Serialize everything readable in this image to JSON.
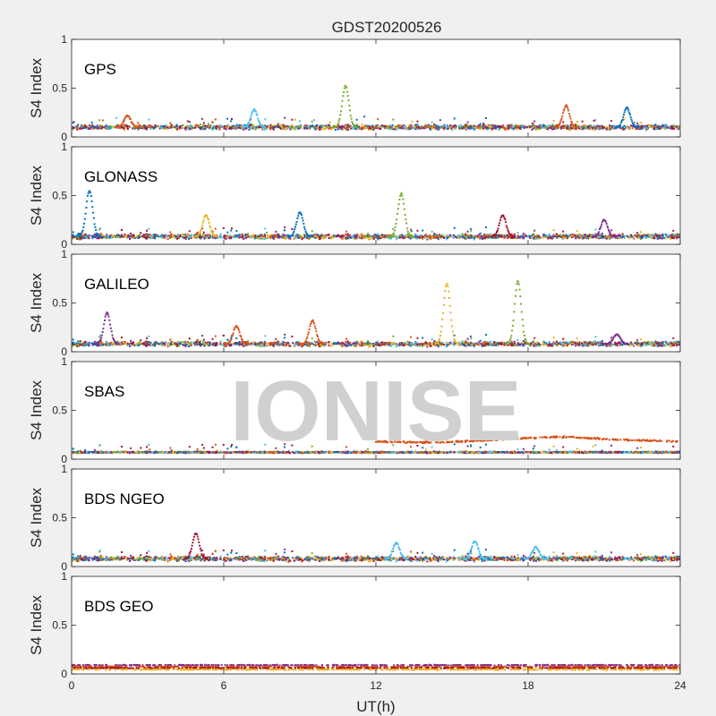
{
  "figure": {
    "title": "GDST20200526",
    "xlabel": "UT(h)",
    "ylabel": "S4 Index",
    "watermark": "IONISE"
  },
  "colors": {
    "series": [
      "#0072BD",
      "#D95319",
      "#EDB120",
      "#7E2F8E",
      "#77AC30",
      "#4DBEEE",
      "#A2142F"
    ],
    "background": "#f0f0f0",
    "axes_bg": "#ffffff"
  },
  "chart_data": [
    {
      "type": "scatter",
      "label": "GPS",
      "xlim": [
        0,
        24
      ],
      "ylim": [
        0,
        1
      ],
      "xticks": [
        0,
        6,
        12,
        18,
        24
      ],
      "yticks": [
        0,
        0.5,
        1
      ],
      "ytick_labels": [
        "0",
        "0.5",
        "1"
      ],
      "baseline_s4": 0.1,
      "spikes": [
        {
          "x": 2.2,
          "y": 0.22,
          "color": "#D95319"
        },
        {
          "x": 7.2,
          "y": 0.28,
          "color": "#4DBEEE"
        },
        {
          "x": 10.8,
          "y": 0.52,
          "color": "#77AC30"
        },
        {
          "x": 19.5,
          "y": 0.32,
          "color": "#D95319"
        },
        {
          "x": 21.9,
          "y": 0.3,
          "color": "#0072BD"
        }
      ]
    },
    {
      "type": "scatter",
      "label": "GLONASS",
      "xlim": [
        0,
        24
      ],
      "ylim": [
        0,
        1
      ],
      "xticks": [
        0,
        6,
        12,
        18,
        24
      ],
      "yticks": [
        0,
        0.5,
        1
      ],
      "ytick_labels": [
        "0",
        "0.5",
        "1"
      ],
      "baseline_s4": 0.08,
      "spikes": [
        {
          "x": 0.7,
          "y": 0.55,
          "color": "#0072BD"
        },
        {
          "x": 5.3,
          "y": 0.3,
          "color": "#EDB120"
        },
        {
          "x": 9.0,
          "y": 0.33,
          "color": "#0072BD"
        },
        {
          "x": 13.0,
          "y": 0.52,
          "color": "#77AC30"
        },
        {
          "x": 17.0,
          "y": 0.3,
          "color": "#A2142F"
        },
        {
          "x": 21.0,
          "y": 0.25,
          "color": "#7E2F8E"
        }
      ]
    },
    {
      "type": "scatter",
      "label": "GALILEO",
      "xlim": [
        0,
        24
      ],
      "ylim": [
        0,
        1
      ],
      "xticks": [
        0,
        6,
        12,
        18,
        24
      ],
      "yticks": [
        0,
        0.5,
        1
      ],
      "ytick_labels": [
        "0",
        "0.5",
        "1"
      ],
      "baseline_s4": 0.08,
      "spikes": [
        {
          "x": 1.4,
          "y": 0.4,
          "color": "#7E2F8E"
        },
        {
          "x": 6.5,
          "y": 0.26,
          "color": "#D95319"
        },
        {
          "x": 9.5,
          "y": 0.32,
          "color": "#D95319"
        },
        {
          "x": 14.8,
          "y": 0.7,
          "color": "#EDB120"
        },
        {
          "x": 17.6,
          "y": 0.72,
          "color": "#77AC30"
        },
        {
          "x": 21.5,
          "y": 0.18,
          "color": "#7E2F8E"
        }
      ]
    },
    {
      "type": "scatter",
      "label": "SBAS",
      "xlim": [
        0,
        24
      ],
      "ylim": [
        0,
        1
      ],
      "xticks": [
        0,
        6,
        12,
        18,
        24
      ],
      "yticks": [
        0,
        0.5,
        1
      ],
      "ytick_labels": [
        "0",
        "0.5",
        "1"
      ],
      "baseline_s4": 0.07,
      "elevated_track": {
        "x_start": 12,
        "x_end": 24,
        "y_values": [
          0.18,
          0.17,
          0.2,
          0.23,
          0.2,
          0.18
        ],
        "color": "#D95319"
      }
    },
    {
      "type": "scatter",
      "label": "BDS NGEO",
      "xlim": [
        0,
        24
      ],
      "ylim": [
        0,
        1
      ],
      "xticks": [
        0,
        6,
        12,
        18,
        24
      ],
      "yticks": [
        0,
        0.5,
        1
      ],
      "ytick_labels": [
        "0",
        "0.5",
        "1"
      ],
      "baseline_s4": 0.08,
      "spikes": [
        {
          "x": 4.9,
          "y": 0.34,
          "color": "#A2142F"
        },
        {
          "x": 12.8,
          "y": 0.24,
          "color": "#4DBEEE"
        },
        {
          "x": 15.9,
          "y": 0.26,
          "color": "#4DBEEE"
        },
        {
          "x": 18.3,
          "y": 0.2,
          "color": "#4DBEEE"
        }
      ]
    },
    {
      "type": "scatter",
      "label": "BDS GEO",
      "xlim": [
        0,
        24
      ],
      "ylim": [
        0,
        1
      ],
      "xticks": [
        0,
        6,
        12,
        18,
        24
      ],
      "yticks": [
        0,
        0.5,
        1
      ],
      "ytick_labels": [
        "0",
        "0.5",
        "1"
      ],
      "baseline_s4": 0.06,
      "flat_levels": [
        {
          "y": 0.09,
          "color": "#7E2F8E"
        },
        {
          "y": 0.075,
          "color": "#D95319"
        },
        {
          "y": 0.06,
          "color": "#A2142F"
        },
        {
          "y": 0.045,
          "color": "#EDB120"
        }
      ]
    }
  ]
}
